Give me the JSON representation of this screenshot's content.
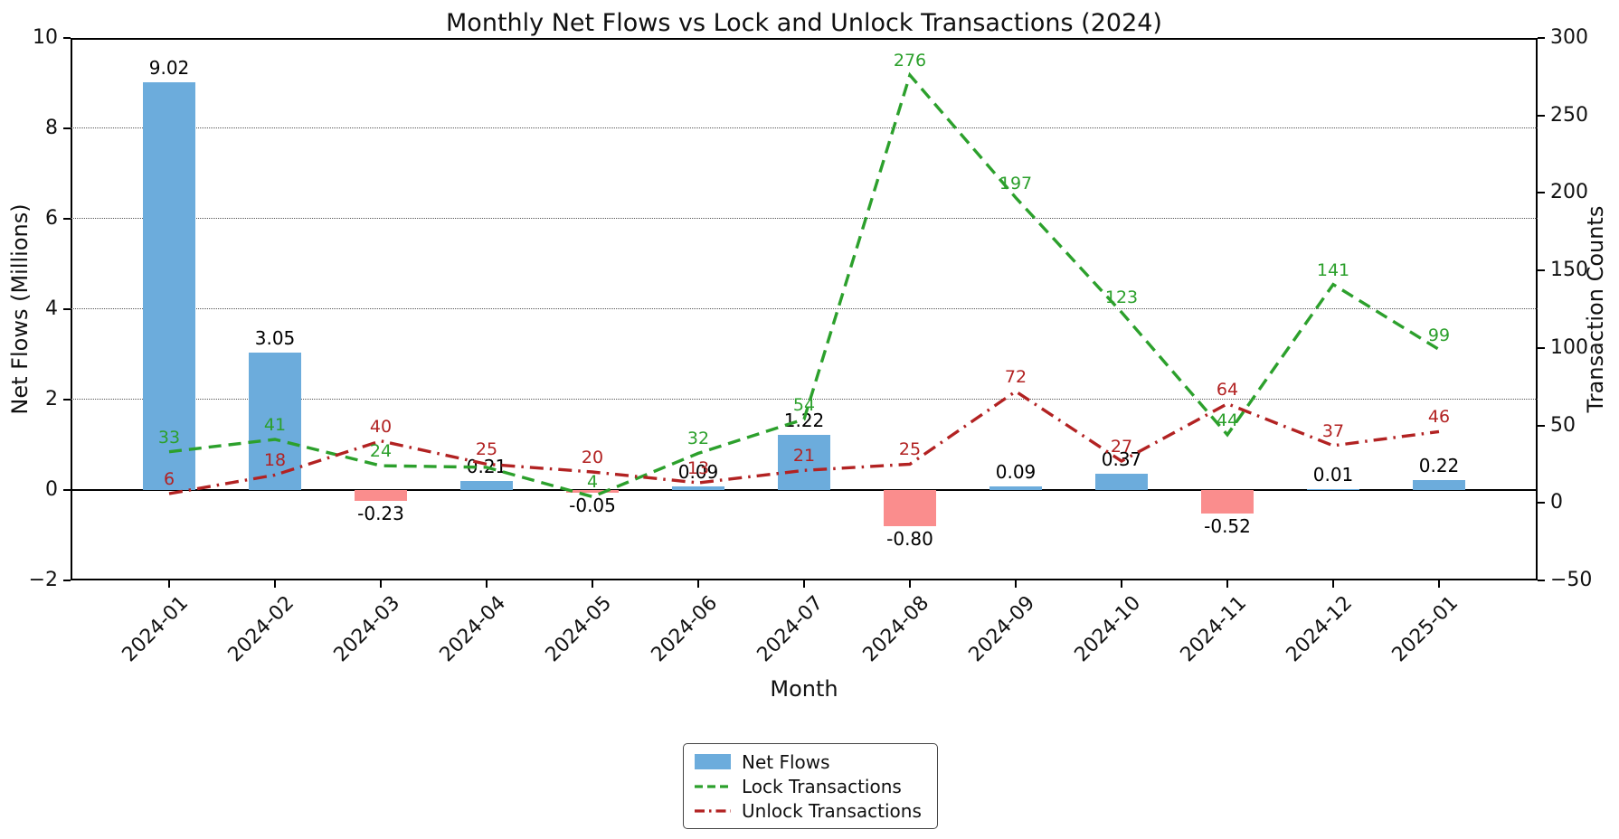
{
  "title": "Monthly Net Flows vs Lock and Unlock Transactions (2024)",
  "x_axis": {
    "label": "Month",
    "categories": [
      "2024-01",
      "2024-02",
      "2024-03",
      "2024-04",
      "2024-05",
      "2024-06",
      "2024-07",
      "2024-08",
      "2024-09",
      "2024-10",
      "2024-11",
      "2024-12",
      "2025-01"
    ]
  },
  "left_axis": {
    "label": "Net Flows (Millions)",
    "tick_labels": [
      "10",
      "8",
      "6",
      "4",
      "2",
      "0",
      "−2"
    ],
    "tick_values": [
      10,
      8,
      6,
      4,
      2,
      0,
      -2
    ],
    "grid_at": [
      8,
      6,
      4,
      2
    ],
    "range": [
      -2,
      10
    ]
  },
  "right_axis": {
    "label": "Transaction Counts",
    "tick_labels": [
      "300",
      "250",
      "200",
      "150",
      "100",
      "50",
      "0",
      "−50"
    ],
    "tick_values": [
      300,
      250,
      200,
      150,
      100,
      50,
      0,
      -50
    ],
    "range": [
      -50,
      300
    ]
  },
  "legend": {
    "items": [
      {
        "label": "Net Flows",
        "marker": "bar",
        "color": "#6cacdc"
      },
      {
        "label": "Lock Transactions",
        "marker": "dashed-line",
        "color": "#2ca02c"
      },
      {
        "label": "Unlock Transactions",
        "marker": "dashdot-line",
        "color": "#b22222"
      }
    ]
  },
  "colors": {
    "bar_positive": "#6cacdc",
    "bar_negative": "#fa8d8d",
    "lock_line": "#2ca02c",
    "unlock_line": "#b22222",
    "bar_label": "#000000"
  },
  "chart_data": {
    "type": "combo-bar-line",
    "categories": [
      "2024-01",
      "2024-02",
      "2024-03",
      "2024-04",
      "2024-05",
      "2024-06",
      "2024-07",
      "2024-08",
      "2024-09",
      "2024-10",
      "2024-11",
      "2024-12",
      "2025-01"
    ],
    "series": [
      {
        "name": "Net Flows",
        "type": "bar",
        "axis": "left",
        "values": [
          9.02,
          3.05,
          -0.23,
          0.21,
          -0.05,
          0.09,
          1.22,
          -0.8,
          0.09,
          0.37,
          -0.52,
          0.01,
          0.22
        ],
        "labels": [
          "9.02",
          "3.05",
          "-0.23",
          "0.21",
          "-0.05",
          "0.09",
          "1.22",
          "-0.80",
          "0.09",
          "0.37",
          "-0.52",
          "0.01",
          "0.22"
        ]
      },
      {
        "name": "Lock Transactions",
        "type": "line",
        "axis": "right",
        "style": "dashed",
        "values": [
          33,
          41,
          24,
          23,
          4,
          32,
          54,
          276,
          197,
          123,
          44,
          141,
          99
        ],
        "labels": [
          "33",
          "41",
          "24",
          "",
          "4",
          "32",
          "54",
          "276",
          "197",
          "123",
          "44",
          "141",
          "99"
        ]
      },
      {
        "name": "Unlock Transactions",
        "type": "line",
        "axis": "right",
        "style": "dashdot",
        "values": [
          6,
          18,
          40,
          25,
          20,
          13,
          21,
          25,
          72,
          27,
          64,
          37,
          46
        ],
        "labels": [
          "6",
          "18",
          "40",
          "25",
          "20",
          "13",
          "21",
          "25",
          "72",
          "27",
          "64",
          "37",
          "46"
        ]
      }
    ],
    "left_ylim": [
      -2,
      10
    ],
    "right_ylim": [
      -50,
      300
    ],
    "grid": "horizontal dotted gridlines at left-axis 2,4,6,8",
    "legend_position": "bottom center, outside plot"
  }
}
